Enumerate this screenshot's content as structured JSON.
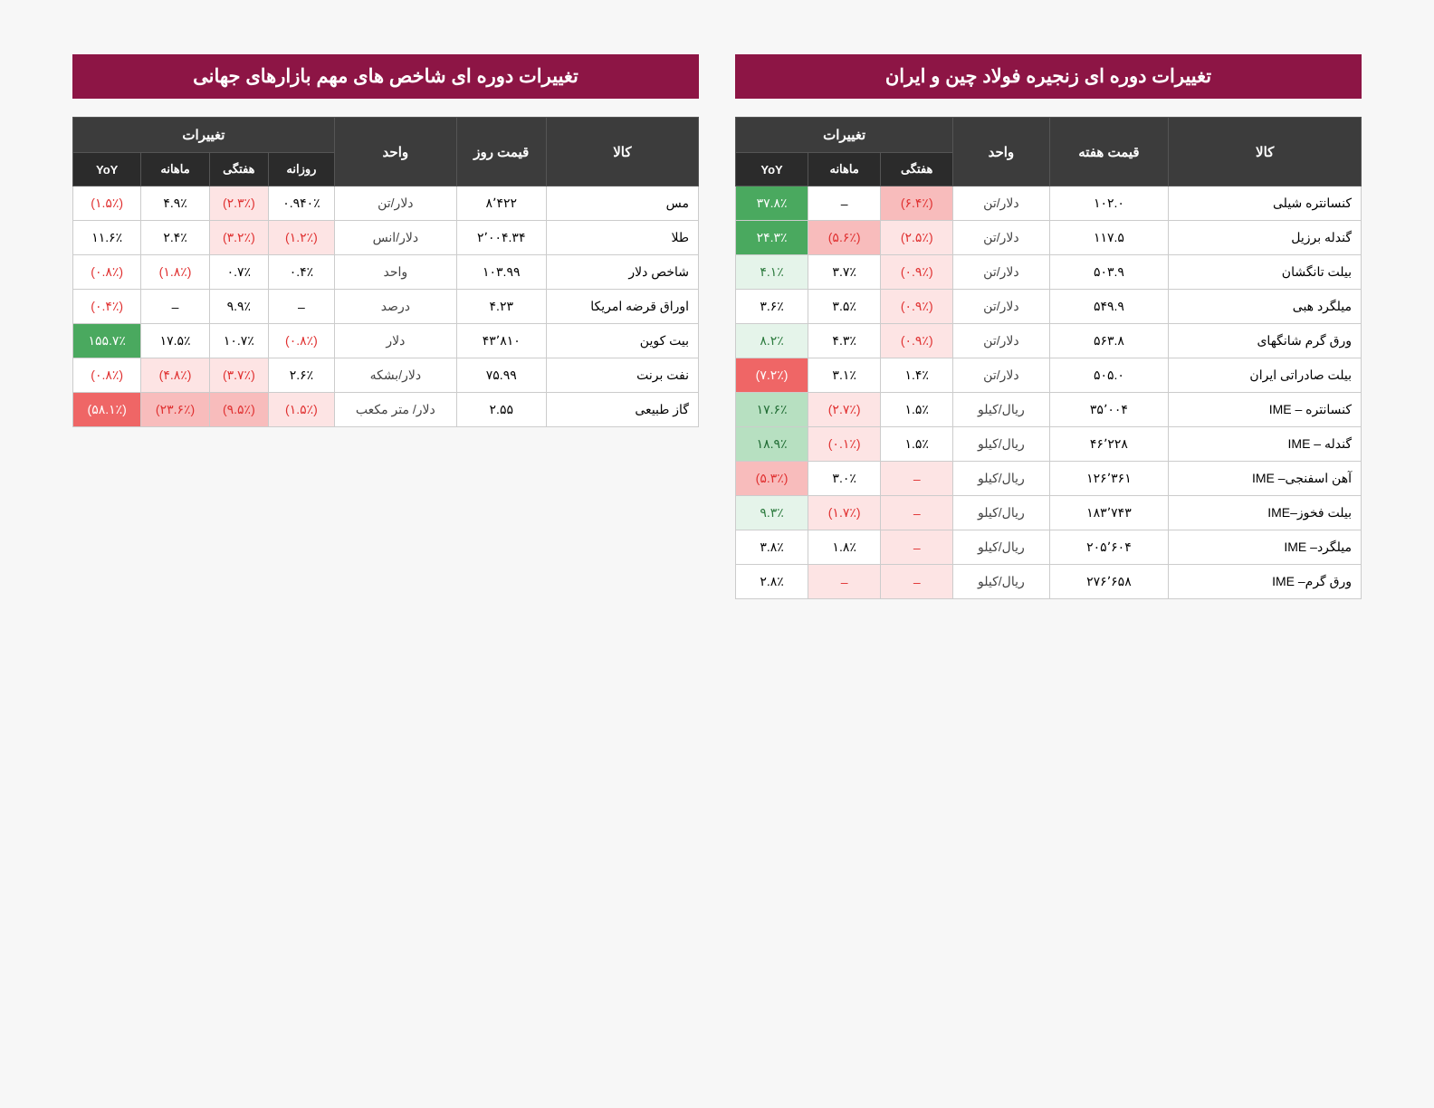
{
  "styling": {
    "page_bg": "#f7f7f7",
    "title_bg": "#8d1545",
    "header_bg": "#3c3c3c",
    "subheader_bg": "#2b2b2b",
    "header_fg": "#ffffff",
    "border_color": "#cccccc",
    "neg_color": "#e03030",
    "neg_bg_light": "#fde4e4",
    "neg_bg_med": "#f8bcbc",
    "neg_bg_strong": "#ef6666",
    "pos_bg_light": "#e5f4ea",
    "pos_bg_med": "#b7e0c1",
    "pos_bg_strong": "#4aa95f",
    "title_fontsize": 21,
    "header_fontsize": 15,
    "cell_fontsize": 14
  },
  "right_table": {
    "title": "تغییرات دوره ای زنجیره فولاد چین و ایران",
    "headers": {
      "commodity": "کالا",
      "price": "قیمت هفته",
      "unit": "واحد",
      "changes": "تغییرات",
      "weekly": "هفتگی",
      "monthly": "ماهانه",
      "yoy": "YoY"
    },
    "rows": [
      {
        "commodity": "کنسانتره  شیلی",
        "price": "۱۰۲.۰",
        "unit": "دلار/تن",
        "w": {
          "v": "(۶.۴٪)",
          "c": "neg-med"
        },
        "m": {
          "v": "–",
          "c": ""
        },
        "y": {
          "v": "۳۷.۸٪",
          "c": "pos-strong"
        }
      },
      {
        "commodity": "گندله برزیل",
        "price": "۱۱۷.۵",
        "unit": "دلار/تن",
        "w": {
          "v": "(۲.۵٪)",
          "c": "neg-light"
        },
        "m": {
          "v": "(۵.۶٪)",
          "c": "neg-med"
        },
        "y": {
          "v": "۲۴.۳٪",
          "c": "pos-strong"
        }
      },
      {
        "commodity": "بیلت تانگشان",
        "price": "۵۰۳.۹",
        "unit": "دلار/تن",
        "w": {
          "v": "(۰.۹٪)",
          "c": "neg-light"
        },
        "m": {
          "v": "۳.۷٪",
          "c": ""
        },
        "y": {
          "v": "۴.۱٪",
          "c": "pos-light"
        }
      },
      {
        "commodity": "میلگرد هبی",
        "price": "۵۴۹.۹",
        "unit": "دلار/تن",
        "w": {
          "v": "(۰.۹٪)",
          "c": "neg-light"
        },
        "m": {
          "v": "۳.۵٪",
          "c": ""
        },
        "y": {
          "v": "۳.۶٪",
          "c": ""
        }
      },
      {
        "commodity": "ورق گرم شانگهای",
        "price": "۵۶۳.۸",
        "unit": "دلار/تن",
        "w": {
          "v": "(۰.۹٪)",
          "c": "neg-light"
        },
        "m": {
          "v": "۴.۳٪",
          "c": ""
        },
        "y": {
          "v": "۸.۲٪",
          "c": "pos-light"
        }
      },
      {
        "commodity": "بیلت صادراتی ایران",
        "price": "۵۰۵.۰",
        "unit": "دلار/تن",
        "w": {
          "v": "۱.۴٪",
          "c": ""
        },
        "m": {
          "v": "۳.۱٪",
          "c": ""
        },
        "y": {
          "v": "(۷.۲٪)",
          "c": "neg-strong"
        }
      },
      {
        "commodity": "کنسانتره – IME",
        "price": "۳۵٬۰۰۴",
        "unit": "ریال/کیلو",
        "w": {
          "v": "۱.۵٪",
          "c": ""
        },
        "m": {
          "v": "(۲.۷٪)",
          "c": "neg-light"
        },
        "y": {
          "v": "۱۷.۶٪",
          "c": "pos-med"
        }
      },
      {
        "commodity": "گندله – IME",
        "price": "۴۶٬۲۲۸",
        "unit": "ریال/کیلو",
        "w": {
          "v": "۱.۵٪",
          "c": ""
        },
        "m": {
          "v": "(۰.۱٪)",
          "c": "neg-light"
        },
        "y": {
          "v": "۱۸.۹٪",
          "c": "pos-med"
        }
      },
      {
        "commodity": "آهن اسفنجی– IME",
        "price": "۱۲۶٬۳۶۱",
        "unit": "ریال/کیلو",
        "w": {
          "v": "–",
          "c": "neg-light"
        },
        "m": {
          "v": "۳.۰٪",
          "c": ""
        },
        "y": {
          "v": "(۵.۳٪)",
          "c": "neg-med"
        }
      },
      {
        "commodity": "بیلت فخوز–IME",
        "price": "۱۸۳٬۷۴۳",
        "unit": "ریال/کیلو",
        "w": {
          "v": "–",
          "c": "neg-light"
        },
        "m": {
          "v": "(۱.۷٪)",
          "c": "neg-light"
        },
        "y": {
          "v": "۹.۳٪",
          "c": "pos-light"
        }
      },
      {
        "commodity": "میلگرد– IME",
        "price": "۲۰۵٬۶۰۴",
        "unit": "ریال/کیلو",
        "w": {
          "v": "–",
          "c": "neg-light"
        },
        "m": {
          "v": "۱.۸٪",
          "c": ""
        },
        "y": {
          "v": "۳.۸٪",
          "c": ""
        }
      },
      {
        "commodity": "ورق گرم– IME",
        "price": "۲۷۶٬۶۵۸",
        "unit": "ریال/کیلو",
        "w": {
          "v": "–",
          "c": "neg-light"
        },
        "m": {
          "v": "–",
          "c": "neg-light"
        },
        "y": {
          "v": "۲.۸٪",
          "c": ""
        }
      }
    ]
  },
  "left_table": {
    "title": "تغییرات دوره ای شاخص های مهم بازارهای جهانی",
    "headers": {
      "commodity": "کالا",
      "price": "قیمت روز",
      "unit": "واحد",
      "changes": "تغییرات",
      "daily": "روزانه",
      "weekly": "هفتگی",
      "monthly": "ماهانه",
      "yoy": "YoY"
    },
    "rows": [
      {
        "commodity": "مس",
        "price": "۸٬۴۲۲",
        "unit": "دلار/تن",
        "d": {
          "v": "۰.۹۴۰٪",
          "c": ""
        },
        "w": {
          "v": "(۲.۳٪)",
          "c": "neg-light"
        },
        "m": {
          "v": "۴.۹٪",
          "c": ""
        },
        "y": {
          "v": "(۱.۵٪)",
          "c": "neg"
        }
      },
      {
        "commodity": "طلا",
        "price": "۲٬۰۰۴.۳۴",
        "unit": "دلار/انس",
        "d": {
          "v": "(۱.۲٪)",
          "c": "neg-light"
        },
        "w": {
          "v": "(۳.۲٪)",
          "c": "neg-light"
        },
        "m": {
          "v": "۲.۴٪",
          "c": ""
        },
        "y": {
          "v": "۱۱.۶٪",
          "c": ""
        }
      },
      {
        "commodity": "شاخص دلار",
        "price": "۱۰۳.۹۹",
        "unit": "واحد",
        "d": {
          "v": "۰.۴٪",
          "c": ""
        },
        "w": {
          "v": "۰.۷٪",
          "c": ""
        },
        "m": {
          "v": "(۱.۸٪)",
          "c": "neg"
        },
        "y": {
          "v": "(۰.۸٪)",
          "c": "neg"
        }
      },
      {
        "commodity": "اوراق قرضه امریکا",
        "price": "۴.۲۳",
        "unit": "درصد",
        "d": {
          "v": "–",
          "c": ""
        },
        "w": {
          "v": "۹.۹٪",
          "c": ""
        },
        "m": {
          "v": "–",
          "c": ""
        },
        "y": {
          "v": "(۰.۴٪)",
          "c": "neg"
        }
      },
      {
        "commodity": "بیت کوین",
        "price": "۴۳٬۸۱۰",
        "unit": "دلار",
        "d": {
          "v": "(۰.۸٪)",
          "c": "neg"
        },
        "w": {
          "v": "۱۰.۷٪",
          "c": ""
        },
        "m": {
          "v": "۱۷.۵٪",
          "c": ""
        },
        "y": {
          "v": "۱۵۵.۷٪",
          "c": "pos-strong"
        }
      },
      {
        "commodity": "نفت برنت",
        "price": "۷۵.۹۹",
        "unit": "دلار/بشکه",
        "d": {
          "v": "۲.۶٪",
          "c": ""
        },
        "w": {
          "v": "(۳.۷٪)",
          "c": "neg-light"
        },
        "m": {
          "v": "(۴.۸٪)",
          "c": "neg-light"
        },
        "y": {
          "v": "(۰.۸٪)",
          "c": "neg"
        }
      },
      {
        "commodity": "گاز طبیعی",
        "price": "۲.۵۵",
        "unit": "دلار/ متر مکعب",
        "d": {
          "v": "(۱.۵٪)",
          "c": "neg-light"
        },
        "w": {
          "v": "(۹.۵٪)",
          "c": "neg-med"
        },
        "m": {
          "v": "(۲۳.۶٪)",
          "c": "neg-med"
        },
        "y": {
          "v": "(۵۸.۱٪)",
          "c": "neg-strong"
        }
      }
    ]
  }
}
